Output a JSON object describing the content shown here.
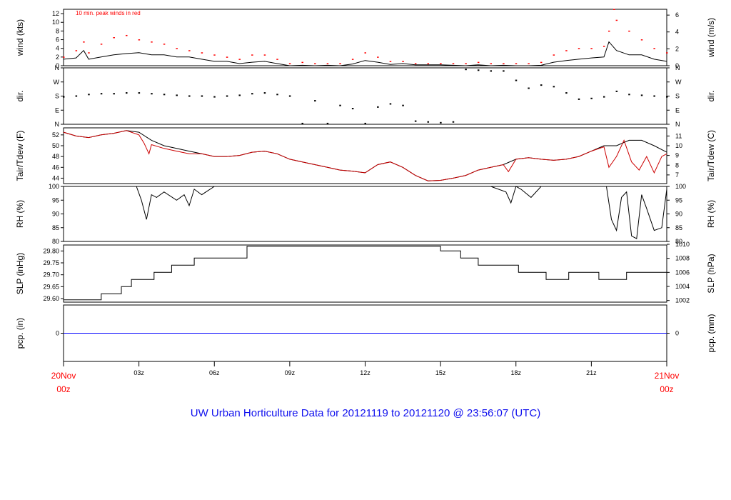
{
  "title": "UW Urban Horticulture Data for 20121119  to  20121120 @ 23:56:07  (UTC)",
  "colors": {
    "primary": "#000000",
    "peak": "#ff0000",
    "precip": "#0000ff",
    "title": "#1010ee",
    "date_label": "#ff0000"
  },
  "x_axis": {
    "range_hours": [
      0,
      24
    ],
    "start_label": [
      "20Nov",
      "00z"
    ],
    "end_label": [
      "21Nov",
      "00z"
    ],
    "ticks": [
      {
        "hour": 3,
        "label": "03z"
      },
      {
        "hour": 6,
        "label": "06z"
      },
      {
        "hour": 9,
        "label": "09z"
      },
      {
        "hour": 12,
        "label": "12z"
      },
      {
        "hour": 15,
        "label": "15z"
      },
      {
        "hour": 18,
        "label": "18z"
      },
      {
        "hour": 21,
        "label": "21z"
      }
    ]
  },
  "chart_data": [
    {
      "id": "wind",
      "type": "line",
      "ylabel_left": "wind (kts)",
      "ylabel_right": "wind (m/s)",
      "annotation": "10 min. peak winds in red",
      "ylim": [
        0,
        13
      ],
      "yticks_left": [
        0,
        2,
        4,
        6,
        8,
        10,
        12
      ],
      "yticks_right": [
        {
          "label": "0",
          "value": 0
        },
        {
          "label": "2",
          "value": 3.89
        },
        {
          "label": "4",
          "value": 7.78
        },
        {
          "label": "6",
          "value": 11.66
        }
      ],
      "series": [
        {
          "role": "speed",
          "x": [
            0,
            0.5,
            0.8,
            1,
            1.5,
            2,
            2.5,
            3,
            3.5,
            4,
            4.5,
            5,
            5.5,
            6,
            6.5,
            7,
            7.5,
            8,
            8.5,
            9,
            9.5,
            10,
            10.5,
            11,
            11.5,
            12,
            12.5,
            13,
            13.5,
            14,
            14.5,
            15,
            15.5,
            16,
            16.5,
            17,
            17.5,
            18,
            18.5,
            19,
            19.5,
            20,
            20.5,
            21,
            21.5,
            21.7,
            22,
            22.5,
            23,
            23.5,
            24
          ],
          "y": [
            1.5,
            1.8,
            3.5,
            1.5,
            2,
            2.5,
            2.8,
            3,
            2.5,
            2.5,
            2,
            2,
            1.5,
            1,
            1,
            0.5,
            0.8,
            1,
            0.5,
            0,
            0.1,
            0,
            0.1,
            0,
            0.4,
            1.2,
            0.8,
            0.3,
            0.5,
            0.2,
            0.2,
            0.2,
            0.1,
            0,
            0.2,
            0,
            0.1,
            0,
            0,
            0.1,
            0.8,
            1.2,
            1.5,
            1.8,
            2,
            5.5,
            3.5,
            2.5,
            2.5,
            1.5,
            1
          ]
        },
        {
          "role": "peak",
          "x": [
            0,
            0.5,
            0.8,
            1,
            1.5,
            2,
            2.5,
            3,
            3.5,
            4,
            4.5,
            5,
            5.5,
            6,
            6.5,
            7,
            7.5,
            8,
            8.5,
            9,
            9.5,
            10,
            10.5,
            11,
            11.5,
            12,
            12.5,
            13,
            13.5,
            14,
            14.5,
            15,
            15.5,
            16,
            16.5,
            17,
            17.5,
            18,
            18.5,
            19,
            19.5,
            20,
            20.5,
            21,
            21.5,
            21.7,
            21.9,
            22,
            22.5,
            23,
            23.5,
            24
          ],
          "y": [
            2,
            3.5,
            5.5,
            3,
            5,
            6.5,
            7,
            6,
            5.5,
            5,
            4,
            3.5,
            3,
            2.5,
            2,
            1.5,
            2.5,
            2.5,
            1.5,
            0.5,
            0.8,
            0.5,
            0.5,
            0.5,
            1.5,
            3,
            2,
            1,
            1,
            0.5,
            0.5,
            0.5,
            0.5,
            0.5,
            0.8,
            0.5,
            0.5,
            0.5,
            0.5,
            0.8,
            2.5,
            3.5,
            4,
            4,
            4.5,
            8,
            13,
            10.5,
            8,
            6,
            4,
            3
          ]
        }
      ]
    },
    {
      "id": "dir",
      "type": "scatter",
      "ylabel_left": "dir.",
      "ylabel_right": "dir.",
      "ylim": [
        0,
        360
      ],
      "yticks": [
        {
          "label": "N",
          "value": 0
        },
        {
          "label": "E",
          "value": 90
        },
        {
          "label": "S",
          "value": 180
        },
        {
          "label": "W",
          "value": 270
        },
        {
          "label": "N",
          "value": 360
        }
      ],
      "x": [
        0,
        0.5,
        1,
        1.5,
        2,
        2.5,
        3,
        3.5,
        4,
        4.5,
        5,
        5.5,
        6,
        6.5,
        7,
        7.5,
        8,
        8.5,
        9,
        9.5,
        10,
        10.5,
        11,
        11.5,
        12,
        12.5,
        13,
        13.5,
        14,
        14.5,
        15,
        15.5,
        16,
        16.5,
        17,
        17.5,
        18,
        18.5,
        19,
        19.5,
        20,
        20.5,
        21,
        21.5,
        22,
        22.5,
        23,
        23.5,
        24
      ],
      "y": [
        175,
        180,
        190,
        195,
        195,
        200,
        200,
        195,
        190,
        185,
        180,
        180,
        175,
        180,
        185,
        195,
        200,
        190,
        180,
        5,
        150,
        5,
        120,
        100,
        5,
        110,
        130,
        120,
        20,
        15,
        10,
        15,
        350,
        345,
        340,
        340,
        280,
        230,
        250,
        240,
        200,
        160,
        165,
        175,
        210,
        190,
        185,
        180,
        175
      ]
    },
    {
      "id": "temp",
      "type": "line",
      "ylabel_left": "Tair/Tdew (F)",
      "ylabel_right": "Tair/Tdew (C)",
      "ylim": [
        43,
        53.3
      ],
      "yticks_left": [
        44,
        46,
        48,
        50,
        52
      ],
      "yticks_right": [
        {
          "label": "7",
          "value": 44.6
        },
        {
          "label": "8",
          "value": 46.4
        },
        {
          "label": "9",
          "value": 48.2
        },
        {
          "label": "10",
          "value": 50.0
        },
        {
          "label": "11",
          "value": 51.8
        }
      ],
      "series": [
        {
          "role": "tair",
          "x": [
            0,
            0.5,
            1,
            1.5,
            2,
            2.5,
            3,
            3.5,
            4,
            4.5,
            5,
            5.5,
            6,
            6.5,
            7,
            7.5,
            8,
            8.5,
            9,
            9.5,
            10,
            10.5,
            11,
            11.5,
            12,
            12.5,
            13,
            13.5,
            14,
            14.5,
            15,
            15.5,
            16,
            16.5,
            17,
            17.5,
            18,
            18.5,
            19,
            19.5,
            20,
            20.5,
            21,
            21.5,
            22,
            22.5,
            23,
            23.5,
            24
          ],
          "y": [
            52.5,
            51.8,
            51.5,
            52,
            52.3,
            52.8,
            52.5,
            51,
            50,
            49.5,
            49,
            48.5,
            48,
            48,
            48.2,
            48.8,
            49,
            48.5,
            47.5,
            47,
            46.5,
            46,
            45.5,
            45.3,
            45,
            46.5,
            47,
            46,
            44.5,
            43.5,
            43.6,
            44,
            44.5,
            45.5,
            46,
            46.5,
            47.5,
            47.8,
            47.5,
            47.3,
            47.5,
            48,
            49,
            50,
            50,
            51,
            51,
            50,
            48.8
          ]
        },
        {
          "role": "tdew",
          "x": [
            0,
            0.5,
            1,
            1.5,
            2,
            2.5,
            3,
            3.2,
            3.4,
            3.5,
            4,
            4.5,
            5,
            5.5,
            6,
            6.5,
            7,
            7.5,
            8,
            8.5,
            9,
            9.5,
            10,
            10.5,
            11,
            11.5,
            12,
            12.5,
            13,
            13.5,
            14,
            14.5,
            15,
            15.5,
            16,
            16.5,
            17,
            17.5,
            17.7,
            18,
            18.5,
            19,
            19.5,
            20,
            20.5,
            21,
            21.5,
            21.7,
            22,
            22.3,
            22.6,
            22.9,
            23.2,
            23.5,
            23.8,
            24
          ],
          "y": [
            52.5,
            51.8,
            51.5,
            52,
            52.3,
            52.8,
            52,
            50.5,
            48.5,
            50.2,
            49.5,
            49,
            48.5,
            48.5,
            48,
            48,
            48.2,
            48.8,
            49,
            48.5,
            47.5,
            47,
            46.5,
            46,
            45.5,
            45.3,
            45,
            46.5,
            47,
            46,
            44.5,
            43.5,
            43.6,
            44,
            44.5,
            45.5,
            46,
            46.5,
            45.2,
            47.5,
            47.8,
            47.5,
            47.3,
            47.5,
            48,
            49,
            49.8,
            46,
            48,
            51,
            47,
            45.5,
            48,
            45,
            48,
            48.5
          ]
        }
      ]
    },
    {
      "id": "rh",
      "type": "line",
      "ylabel_left": "RH (%)",
      "ylabel_right": "RH (%)",
      "ylim": [
        80,
        100
      ],
      "yticks": [
        80,
        85,
        90,
        95,
        100
      ],
      "x": [
        0,
        1,
        1.5,
        2,
        2.9,
        3.1,
        3.3,
        3.5,
        3.7,
        4,
        4.5,
        4.8,
        5,
        5.2,
        5.5,
        6,
        9,
        12,
        15,
        17,
        17.6,
        17.8,
        18,
        18.2,
        18.6,
        19,
        20,
        21,
        21.6,
        21.8,
        22,
        22.2,
        22.4,
        22.6,
        22.8,
        23,
        23.2,
        23.5,
        23.8,
        24
      ],
      "y": [
        100,
        100,
        100,
        100,
        100,
        95,
        88,
        97,
        96,
        98,
        95,
        97,
        93,
        99,
        97,
        100,
        100,
        100,
        100,
        100,
        98,
        94,
        100,
        99,
        96,
        100,
        100,
        100,
        100,
        88,
        84,
        96,
        98,
        82,
        81,
        97,
        92,
        84,
        85,
        99
      ]
    },
    {
      "id": "slp",
      "type": "line",
      "ylabel_left": "SLP (inHg)",
      "ylabel_right": "SLP (hPa)",
      "ylim": [
        29.585,
        29.825
      ],
      "yticks_left": [
        29.6,
        29.65,
        29.7,
        29.75,
        29.8
      ],
      "yticks_right": [
        {
          "label": "1002",
          "value": 29.592
        },
        {
          "label": "1004",
          "value": 29.651
        },
        {
          "label": "1006",
          "value": 29.71
        },
        {
          "label": "1008",
          "value": 29.769
        },
        {
          "label": "1010",
          "value": 29.828
        }
      ],
      "x": [
        0,
        1.2,
        1.5,
        2.3,
        2.7,
        3.6,
        4.3,
        5.2,
        7.3,
        12,
        15,
        15.8,
        16.5,
        18.1,
        19.2,
        20.1,
        21.3,
        22.4,
        24
      ],
      "y": [
        29.595,
        29.595,
        29.62,
        29.65,
        29.68,
        29.71,
        29.74,
        29.77,
        29.82,
        29.82,
        29.8,
        29.77,
        29.74,
        29.71,
        29.68,
        29.71,
        29.68,
        29.71,
        29.74
      ]
    },
    {
      "id": "pcp",
      "type": "line",
      "ylabel_left": "pcp. (in)",
      "ylabel_right": "pcp. (mm)",
      "ylim": [
        -0.1,
        0.1
      ],
      "yticks_left": [
        0
      ],
      "yticks_right": [
        0
      ],
      "x": [
        0,
        24
      ],
      "y": [
        0,
        0
      ]
    }
  ]
}
